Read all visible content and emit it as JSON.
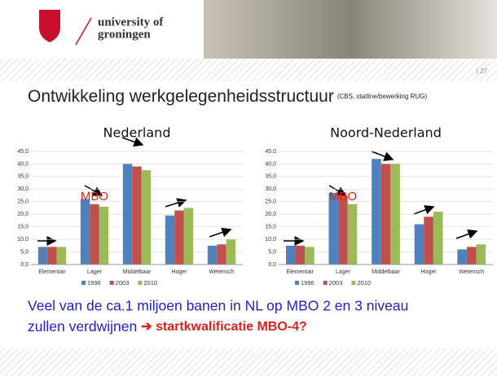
{
  "header": {
    "logo_line1": "university of",
    "logo_line2": "groningen",
    "page_number": "| 27"
  },
  "slide": {
    "title": "Ontwikkeling werkgelegenheidsstructuur",
    "source": "(CBS, statline/bewerking RUG)",
    "text_line1": "Veel van de ca.1 miljoen banen in NL op MBO 2 en 3 niveau",
    "text_line2": "zullen verdwijnen ",
    "text_highlight": "➔ startkwalificatie MBO-4?"
  },
  "chart_data": [
    {
      "type": "bar",
      "title": "Nederland",
      "annotation": "MBO",
      "categories": [
        "Elementair",
        "Lager",
        "Middelbaar",
        "Hoger",
        "Wetensch"
      ],
      "series": [
        {
          "name": "1996",
          "color": "#4f81bd",
          "values": [
            7,
            26,
            40,
            19.5,
            7.5
          ]
        },
        {
          "name": "2003",
          "color": "#c0504d",
          "values": [
            7,
            24,
            39,
            21.5,
            8
          ]
        },
        {
          "name": "2010",
          "color": "#9bbb59",
          "values": [
            7,
            23,
            37.5,
            22.5,
            10
          ]
        }
      ],
      "ylim": [
        0,
        45
      ],
      "yticks": [
        {
          "value": 0,
          "label": "0,0"
        },
        {
          "value": 5,
          "label": "5,0"
        },
        {
          "value": 10,
          "label": "10,0"
        },
        {
          "value": 15,
          "label": "15,0"
        },
        {
          "value": 20,
          "label": "20,0"
        },
        {
          "value": 25,
          "label": "25,0"
        },
        {
          "value": 30,
          "label": "30,0"
        },
        {
          "value": 35,
          "label": "35,0"
        },
        {
          "value": 40,
          "label": "40,0"
        },
        {
          "value": 45,
          "label": "45,0"
        }
      ],
      "grid": true
    },
    {
      "type": "bar",
      "title": "Noord-Nederland",
      "annotation": "MBO",
      "categories": [
        "Elementair",
        "Lager",
        "Middelbaar",
        "Hoger",
        "Wetensch"
      ],
      "series": [
        {
          "name": "1996",
          "color": "#4f81bd",
          "values": [
            7.5,
            28.5,
            42,
            16,
            6
          ]
        },
        {
          "name": "2003",
          "color": "#c0504d",
          "values": [
            7.5,
            27.5,
            40,
            19,
            7
          ]
        },
        {
          "name": "2010",
          "color": "#9bbb59",
          "values": [
            7,
            24,
            40,
            21,
            8
          ]
        }
      ],
      "ylim": [
        0,
        45
      ],
      "yticks": [
        {
          "value": 0,
          "label": "0,0"
        },
        {
          "value": 5,
          "label": "5,0"
        },
        {
          "value": 10,
          "label": "10,0"
        },
        {
          "value": 15,
          "label": "15,0"
        },
        {
          "value": 20,
          "label": "20,0"
        },
        {
          "value": 25,
          "label": "25,0"
        },
        {
          "value": 30,
          "label": "30,0"
        },
        {
          "value": 35,
          "label": "35,0"
        },
        {
          "value": 40,
          "label": "40,0"
        },
        {
          "value": 45,
          "label": "45,0"
        }
      ],
      "grid": true
    }
  ]
}
